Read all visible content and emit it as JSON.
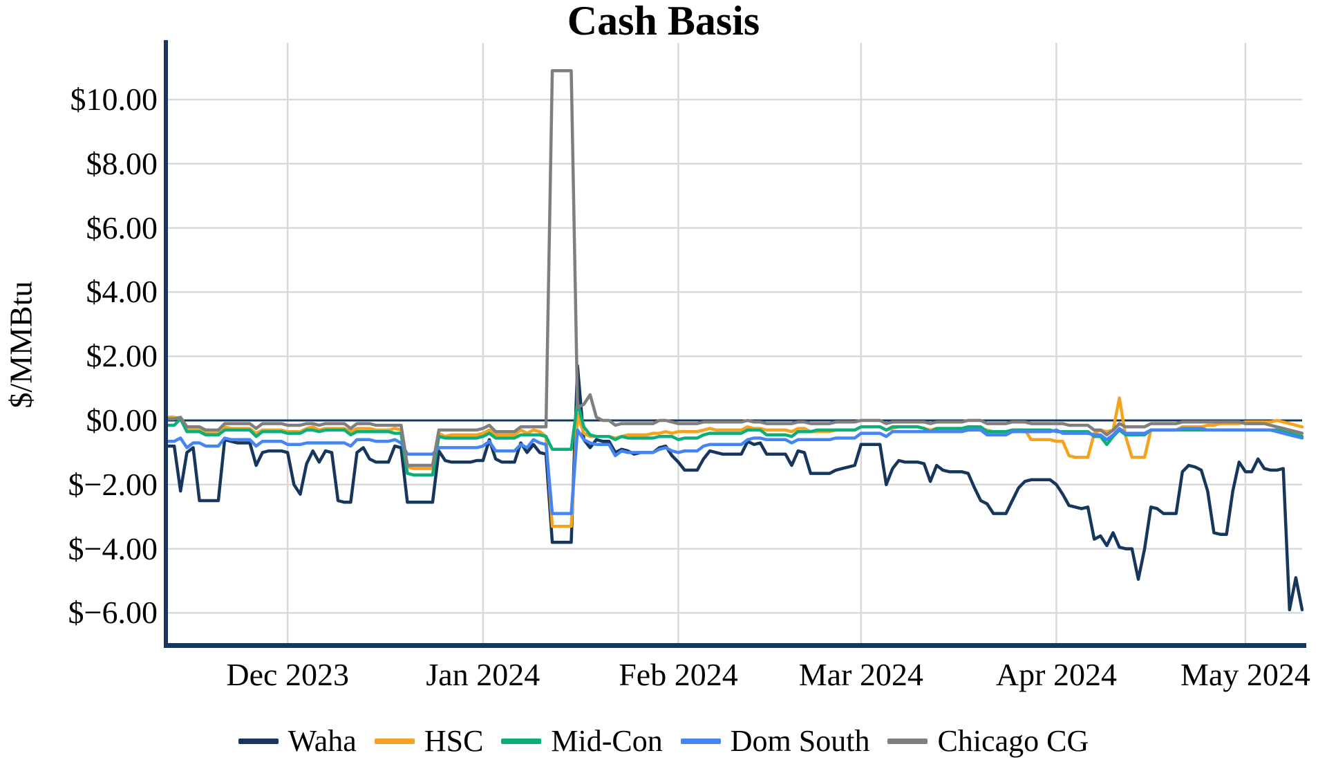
{
  "title": "Cash Basis",
  "y_axis": {
    "label": "$/MMBtu",
    "ticks": [
      {
        "value": 10,
        "label": "$10.00"
      },
      {
        "value": 8,
        "label": "$8.00"
      },
      {
        "value": 6,
        "label": "$6.00"
      },
      {
        "value": 4,
        "label": "$4.00"
      },
      {
        "value": 2,
        "label": "$2.00"
      },
      {
        "value": 0,
        "label": "$0.00"
      },
      {
        "value": -2,
        "label": "$−2.00"
      },
      {
        "value": -4,
        "label": "$−4.00"
      },
      {
        "value": -6,
        "label": "$−6.00"
      }
    ]
  },
  "x_axis": {
    "ticks": [
      {
        "day": 19,
        "label": "Dec 2023"
      },
      {
        "day": 50,
        "label": "Jan 2024"
      },
      {
        "day": 81,
        "label": "Feb 2024"
      },
      {
        "day": 110,
        "label": "Mar 2024"
      },
      {
        "day": 141,
        "label": "Apr 2024"
      },
      {
        "day": 171,
        "label": "May 2024"
      }
    ]
  },
  "colors": {
    "axis": "#16365c",
    "zero_line": "#16365c",
    "grid": "#d9d9d9"
  },
  "chart_data": {
    "type": "line",
    "title": "Cash Basis",
    "ylabel": "$/MMBtu",
    "ylim": [
      -7.0,
      11.8
    ],
    "x_unit": "daily, days since 2023-11-12",
    "x_range": [
      "2023-11-12",
      "2024-05-10"
    ],
    "grid": true,
    "legend_position": "bottom",
    "notes": "Chicago CG spikes to ~$10.90 Jan 12-15 2024 while Waha falls to ~-$3.80, HSC ~-$3.30, Dom South ~-$2.90, Mid-Con ~-$0.90; Waha spikes to +$1.70 on Jan 16 then drifts lower through spring, ending near -$5.90 in May.",
    "series": [
      {
        "name": "Waha",
        "color": "#16365c",
        "values": [
          -0.8,
          -0.8,
          -2.2,
          -1.0,
          -0.85,
          -2.5,
          -2.5,
          -2.5,
          -2.5,
          -0.6,
          -0.65,
          -0.7,
          -0.7,
          -0.7,
          -1.4,
          -1.0,
          -0.95,
          -0.95,
          -0.95,
          -1.0,
          -2.0,
          -2.3,
          -1.35,
          -0.95,
          -1.3,
          -0.95,
          -1.0,
          -2.5,
          -2.55,
          -2.55,
          -1.0,
          -0.85,
          -1.2,
          -1.3,
          -1.3,
          -1.3,
          -0.8,
          -0.85,
          -2.55,
          -2.55,
          -2.55,
          -2.55,
          -2.55,
          -0.95,
          -1.25,
          -1.3,
          -1.3,
          -1.3,
          -1.3,
          -1.25,
          -1.25,
          -0.6,
          -1.2,
          -1.3,
          -1.3,
          -1.3,
          -0.7,
          -1.0,
          -0.75,
          -1.0,
          -1.05,
          -3.8,
          -3.8,
          -3.8,
          -3.8,
          1.7,
          -0.6,
          -0.85,
          -0.6,
          -0.65,
          -0.65,
          -1.0,
          -0.9,
          -0.95,
          -1.05,
          -1.0,
          -1.0,
          -1.0,
          -0.85,
          -0.8,
          -1.1,
          -1.3,
          -1.55,
          -1.55,
          -1.55,
          -1.2,
          -0.95,
          -1.0,
          -1.05,
          -1.05,
          -1.05,
          -1.05,
          -0.65,
          -0.75,
          -0.7,
          -1.05,
          -1.05,
          -1.05,
          -1.05,
          -1.4,
          -0.95,
          -1.0,
          -1.65,
          -1.65,
          -1.65,
          -1.65,
          -1.55,
          -1.5,
          -1.45,
          -1.4,
          -0.75,
          -0.75,
          -0.75,
          -0.75,
          -2.0,
          -1.5,
          -1.25,
          -1.3,
          -1.3,
          -1.3,
          -1.35,
          -1.9,
          -1.4,
          -1.55,
          -1.6,
          -1.6,
          -1.6,
          -1.65,
          -2.1,
          -2.5,
          -2.6,
          -2.9,
          -2.9,
          -2.9,
          -2.5,
          -2.1,
          -1.9,
          -1.85,
          -1.85,
          -1.85,
          -1.85,
          -2.0,
          -2.3,
          -2.65,
          -2.7,
          -2.75,
          -2.7,
          -3.7,
          -3.6,
          -3.9,
          -3.5,
          -3.95,
          -4.0,
          -4.0,
          -4.95,
          -4.0,
          -2.7,
          -2.75,
          -2.9,
          -2.9,
          -2.9,
          -1.6,
          -1.4,
          -1.45,
          -1.55,
          -2.2,
          -3.5,
          -3.55,
          -3.55,
          -2.2,
          -1.3,
          -1.6,
          -1.6,
          -1.2,
          -1.5,
          -1.55,
          -1.55,
          -1.5,
          -5.9,
          -4.9,
          -5.9
        ]
      },
      {
        "name": "HSC",
        "color": "#f5a31e",
        "values": [
          0.1,
          0.1,
          0.05,
          -0.3,
          -0.3,
          -0.3,
          -0.4,
          -0.4,
          -0.4,
          -0.2,
          -0.25,
          -0.25,
          -0.25,
          -0.25,
          -0.4,
          -0.3,
          -0.3,
          -0.3,
          -0.3,
          -0.35,
          -0.35,
          -0.35,
          -0.25,
          -0.2,
          -0.3,
          -0.25,
          -0.25,
          -0.25,
          -0.25,
          -0.35,
          -0.25,
          -0.25,
          -0.25,
          -0.3,
          -0.3,
          -0.3,
          -0.25,
          -0.3,
          -1.45,
          -1.5,
          -1.5,
          -1.5,
          -1.5,
          -0.4,
          -0.5,
          -0.45,
          -0.45,
          -0.45,
          -0.45,
          -0.45,
          -0.4,
          -0.3,
          -0.45,
          -0.45,
          -0.45,
          -0.45,
          -0.3,
          -0.4,
          -0.3,
          -0.35,
          -0.5,
          -3.3,
          -3.3,
          -3.3,
          -3.3,
          0.2,
          -0.4,
          -0.5,
          -0.5,
          -0.5,
          -0.5,
          -0.55,
          -0.5,
          -0.45,
          -0.45,
          -0.45,
          -0.45,
          -0.4,
          -0.4,
          -0.35,
          -0.4,
          -0.35,
          -0.35,
          -0.35,
          -0.35,
          -0.3,
          -0.25,
          -0.3,
          -0.3,
          -0.3,
          -0.3,
          -0.3,
          -0.2,
          -0.25,
          -0.25,
          -0.3,
          -0.3,
          -0.3,
          -0.3,
          -0.35,
          -0.25,
          -0.25,
          -0.35,
          -0.35,
          -0.35,
          -0.35,
          -0.3,
          -0.3,
          -0.3,
          -0.3,
          -0.2,
          -0.2,
          -0.2,
          -0.2,
          -0.3,
          -0.25,
          -0.2,
          -0.2,
          -0.2,
          -0.2,
          -0.25,
          -0.3,
          -0.25,
          -0.25,
          -0.25,
          -0.25,
          -0.25,
          -0.2,
          -0.25,
          -0.25,
          -0.3,
          -0.35,
          -0.35,
          -0.35,
          -0.3,
          -0.3,
          -0.3,
          -0.6,
          -0.6,
          -0.6,
          -0.6,
          -0.65,
          -0.65,
          -1.1,
          -1.15,
          -1.15,
          -1.15,
          -0.4,
          -0.3,
          -0.35,
          -0.3,
          0.7,
          -0.5,
          -1.15,
          -1.15,
          -1.15,
          -0.3,
          -0.3,
          -0.3,
          -0.3,
          -0.3,
          -0.2,
          -0.2,
          -0.2,
          -0.2,
          -0.15,
          -0.15,
          -0.1,
          -0.1,
          -0.1,
          -0.1,
          -0.05,
          -0.05,
          -0.05,
          -0.05,
          -0.05,
          0.0,
          -0.05,
          -0.1,
          -0.15,
          -0.2
        ]
      },
      {
        "name": "Mid-Con",
        "color": "#0caf7a",
        "values": [
          -0.15,
          -0.15,
          0.05,
          -0.35,
          -0.35,
          -0.35,
          -0.45,
          -0.45,
          -0.45,
          -0.3,
          -0.3,
          -0.3,
          -0.3,
          -0.3,
          -0.5,
          -0.35,
          -0.35,
          -0.35,
          -0.35,
          -0.4,
          -0.4,
          -0.4,
          -0.3,
          -0.3,
          -0.35,
          -0.3,
          -0.3,
          -0.3,
          -0.3,
          -0.45,
          -0.35,
          -0.35,
          -0.35,
          -0.35,
          -0.35,
          -0.35,
          -0.4,
          -0.4,
          -1.65,
          -1.7,
          -1.7,
          -1.7,
          -1.7,
          -0.5,
          -0.55,
          -0.55,
          -0.55,
          -0.55,
          -0.55,
          -0.55,
          -0.5,
          -0.4,
          -0.55,
          -0.55,
          -0.55,
          -0.55,
          -0.45,
          -0.45,
          -0.45,
          -0.45,
          -0.5,
          -0.9,
          -0.9,
          -0.9,
          -0.9,
          0.55,
          -0.2,
          -0.45,
          -0.5,
          -0.5,
          -0.5,
          -0.6,
          -0.5,
          -0.55,
          -0.55,
          -0.55,
          -0.55,
          -0.55,
          -0.5,
          -0.5,
          -0.5,
          -0.6,
          -0.55,
          -0.55,
          -0.55,
          -0.45,
          -0.4,
          -0.4,
          -0.4,
          -0.4,
          -0.4,
          -0.4,
          -0.3,
          -0.3,
          -0.3,
          -0.45,
          -0.45,
          -0.45,
          -0.45,
          -0.5,
          -0.35,
          -0.35,
          -0.35,
          -0.3,
          -0.3,
          -0.3,
          -0.3,
          -0.3,
          -0.3,
          -0.3,
          -0.2,
          -0.2,
          -0.2,
          -0.2,
          -0.3,
          -0.2,
          -0.2,
          -0.2,
          -0.2,
          -0.2,
          -0.25,
          -0.35,
          -0.25,
          -0.25,
          -0.25,
          -0.25,
          -0.25,
          -0.2,
          -0.2,
          -0.2,
          -0.35,
          -0.35,
          -0.35,
          -0.35,
          -0.3,
          -0.3,
          -0.3,
          -0.3,
          -0.3,
          -0.3,
          -0.3,
          -0.35,
          -0.35,
          -0.35,
          -0.35,
          -0.35,
          -0.35,
          -0.5,
          -0.5,
          -0.75,
          -0.5,
          -0.3,
          -0.45,
          -0.45,
          -0.45,
          -0.45,
          -0.3,
          -0.3,
          -0.3,
          -0.3,
          -0.3,
          -0.3,
          -0.3,
          -0.3,
          -0.3,
          -0.3,
          -0.3,
          -0.3,
          -0.3,
          -0.3,
          -0.3,
          -0.3,
          -0.3,
          -0.3,
          -0.3,
          -0.3,
          -0.3,
          -0.35,
          -0.4,
          -0.45,
          -0.5
        ]
      },
      {
        "name": "Dom South",
        "color": "#4484f3",
        "values": [
          -0.65,
          -0.65,
          -0.55,
          -0.85,
          -0.7,
          -0.7,
          -0.8,
          -0.8,
          -0.8,
          -0.55,
          -0.6,
          -0.6,
          -0.6,
          -0.6,
          -0.8,
          -0.65,
          -0.65,
          -0.65,
          -0.65,
          -0.75,
          -0.75,
          -0.75,
          -0.7,
          -0.7,
          -0.7,
          -0.7,
          -0.7,
          -0.7,
          -0.7,
          -0.8,
          -0.6,
          -0.6,
          -0.6,
          -0.65,
          -0.65,
          -0.65,
          -0.6,
          -0.7,
          -1.05,
          -1.05,
          -1.05,
          -1.05,
          -1.05,
          -0.85,
          -0.85,
          -0.85,
          -0.85,
          -0.85,
          -0.85,
          -0.85,
          -0.8,
          -0.65,
          -0.95,
          -0.95,
          -0.95,
          -0.95,
          -0.75,
          -0.85,
          -0.6,
          -0.7,
          -0.75,
          -2.9,
          -2.9,
          -2.9,
          -2.9,
          -0.3,
          -0.6,
          -0.7,
          -0.75,
          -0.75,
          -0.75,
          -1.1,
          -0.95,
          -1.0,
          -1.0,
          -1.0,
          -1.0,
          -1.0,
          -0.9,
          -0.85,
          -0.95,
          -1.0,
          -0.95,
          -0.95,
          -0.95,
          -0.8,
          -0.75,
          -0.75,
          -0.75,
          -0.75,
          -0.75,
          -0.75,
          -0.6,
          -0.55,
          -0.55,
          -0.6,
          -0.6,
          -0.6,
          -0.6,
          -0.7,
          -0.6,
          -0.6,
          -0.6,
          -0.6,
          -0.6,
          -0.6,
          -0.55,
          -0.55,
          -0.55,
          -0.55,
          -0.4,
          -0.4,
          -0.4,
          -0.4,
          -0.5,
          -0.35,
          -0.35,
          -0.35,
          -0.35,
          -0.35,
          -0.35,
          -0.35,
          -0.35,
          -0.35,
          -0.35,
          -0.35,
          -0.35,
          -0.3,
          -0.3,
          -0.3,
          -0.45,
          -0.45,
          -0.45,
          -0.45,
          -0.35,
          -0.35,
          -0.35,
          -0.35,
          -0.35,
          -0.35,
          -0.35,
          -0.3,
          -0.4,
          -0.4,
          -0.4,
          -0.4,
          -0.4,
          -0.45,
          -0.45,
          -0.6,
          -0.45,
          -0.25,
          -0.4,
          -0.4,
          -0.4,
          -0.4,
          -0.3,
          -0.3,
          -0.3,
          -0.3,
          -0.3,
          -0.25,
          -0.25,
          -0.25,
          -0.25,
          -0.3,
          -0.3,
          -0.3,
          -0.3,
          -0.3,
          -0.3,
          -0.3,
          -0.3,
          -0.3,
          -0.3,
          -0.3,
          -0.35,
          -0.4,
          -0.45,
          -0.5,
          -0.55
        ]
      },
      {
        "name": "Chicago CG",
        "color": "#7f7f7f",
        "values": [
          0.05,
          0.05,
          0.1,
          -0.2,
          -0.2,
          -0.2,
          -0.3,
          -0.3,
          -0.3,
          -0.1,
          -0.1,
          -0.1,
          -0.1,
          -0.1,
          -0.25,
          -0.1,
          -0.1,
          -0.1,
          -0.1,
          -0.15,
          -0.15,
          -0.15,
          -0.1,
          -0.1,
          -0.15,
          -0.1,
          -0.1,
          -0.1,
          -0.1,
          -0.25,
          -0.1,
          -0.1,
          -0.1,
          -0.15,
          -0.15,
          -0.15,
          -0.15,
          -0.15,
          -1.4,
          -1.4,
          -1.4,
          -1.4,
          -1.4,
          -0.3,
          -0.3,
          -0.3,
          -0.3,
          -0.3,
          -0.3,
          -0.3,
          -0.25,
          -0.15,
          -0.35,
          -0.35,
          -0.35,
          -0.35,
          -0.2,
          -0.2,
          -0.2,
          -0.2,
          -0.2,
          10.9,
          10.9,
          10.9,
          10.9,
          0.4,
          0.5,
          0.8,
          0.1,
          0.0,
          0.0,
          -0.15,
          -0.1,
          -0.1,
          -0.1,
          -0.1,
          -0.1,
          -0.1,
          0.0,
          0.0,
          -0.05,
          -0.1,
          -0.1,
          -0.1,
          -0.1,
          -0.05,
          -0.05,
          -0.05,
          -0.05,
          -0.05,
          -0.05,
          -0.05,
          0.0,
          -0.05,
          -0.05,
          -0.1,
          -0.1,
          -0.1,
          -0.1,
          -0.1,
          -0.05,
          -0.05,
          -0.1,
          -0.1,
          -0.1,
          -0.1,
          -0.05,
          -0.05,
          -0.05,
          -0.05,
          0.0,
          0.0,
          0.0,
          0.0,
          -0.1,
          -0.05,
          -0.05,
          -0.05,
          -0.05,
          -0.05,
          -0.05,
          -0.1,
          -0.05,
          -0.05,
          -0.05,
          -0.05,
          -0.05,
          0.0,
          0.0,
          0.0,
          -0.1,
          -0.1,
          -0.1,
          -0.1,
          -0.05,
          -0.05,
          -0.05,
          -0.1,
          -0.1,
          -0.1,
          -0.1,
          -0.1,
          -0.1,
          -0.15,
          -0.15,
          -0.15,
          -0.15,
          -0.3,
          -0.3,
          -0.45,
          -0.3,
          -0.1,
          -0.2,
          -0.2,
          -0.2,
          -0.2,
          -0.1,
          -0.1,
          -0.1,
          -0.1,
          -0.1,
          -0.05,
          -0.05,
          -0.05,
          -0.05,
          -0.05,
          -0.05,
          -0.05,
          -0.05,
          -0.05,
          -0.05,
          -0.1,
          -0.1,
          -0.1,
          -0.1,
          -0.15,
          -0.2,
          -0.25,
          -0.3,
          -0.35,
          -0.4
        ]
      }
    ]
  }
}
